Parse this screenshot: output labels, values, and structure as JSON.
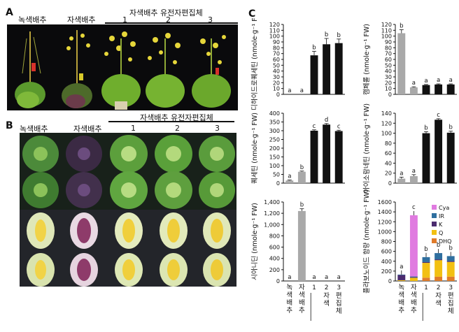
{
  "panelA": {
    "letter": "A",
    "labels": [
      "녹색배추",
      "자색배추"
    ],
    "group_label": "자색배추 유전자편집체",
    "numbers": [
      "1",
      "2",
      "3"
    ]
  },
  "panelB": {
    "letter": "B",
    "labels": [
      "녹색배추",
      "자색배추"
    ],
    "group_label": "자색배추 유전자편집체",
    "numbers": [
      "1",
      "2",
      "3"
    ]
  },
  "panelC": {
    "letter": "C",
    "xcategories": [
      "녹색배추",
      "자색배추",
      "1",
      "2",
      "3"
    ],
    "xgroup_label": "편집체",
    "xgroup_prefix": "자색",
    "colors": {
      "black": "#111111",
      "gray": "#a9a9a9"
    }
  },
  "chart_data": [
    {
      "type": "bar",
      "ylabel": "디하이드로퀘세틴 (nmole·g⁻¹ FW)",
      "yticks": [
        "0",
        "10",
        "20",
        "30",
        "40",
        "50",
        "60",
        "70",
        "80",
        "90",
        "100",
        "110",
        "120"
      ],
      "ylim": [
        0,
        120
      ],
      "categories": [
        "녹색배추",
        "자색배추",
        "1",
        "2",
        "3"
      ],
      "values": [
        0,
        0,
        67,
        86,
        88
      ],
      "errors": [
        0,
        0,
        7,
        10,
        7
      ],
      "letters": [
        "a",
        "a",
        "b",
        "b",
        "b"
      ]
    },
    {
      "type": "bar",
      "ylabel": "캠페롤 (nmole·g⁻¹ FW)",
      "yticks": [
        "0",
        "10",
        "20",
        "30",
        "40",
        "50",
        "60",
        "70",
        "80",
        "90",
        "100",
        "110",
        "120"
      ],
      "ylim": [
        0,
        120
      ],
      "categories": [
        "녹색배추",
        "자색배추",
        "1",
        "2",
        "3"
      ],
      "values": [
        105,
        12,
        16,
        17,
        17
      ],
      "errors": [
        6,
        1,
        1,
        1,
        1
      ],
      "letters": [
        "b",
        "a",
        "a",
        "a",
        "a"
      ]
    },
    {
      "type": "bar",
      "ylabel": "퀘세틴 (nmole·g⁻¹ FW)",
      "yticks": [
        "0",
        "50",
        "100",
        "150",
        "200",
        "250",
        "300",
        "350",
        "400"
      ],
      "ylim": [
        0,
        400
      ],
      "categories": [
        "녹색배추",
        "자색배추",
        "1",
        "2",
        "3"
      ],
      "values": [
        15,
        65,
        300,
        335,
        298
      ],
      "errors": [
        3,
        4,
        5,
        6,
        5
      ],
      "letters": [
        "a",
        "b",
        "c",
        "d",
        "c"
      ]
    },
    {
      "type": "bar",
      "ylabel": "아이소람네틴 (nmole·g⁻¹ FW)",
      "yticks": [
        "0",
        "20",
        "40",
        "60",
        "80",
        "100",
        "120",
        "140"
      ],
      "ylim": [
        0,
        140
      ],
      "categories": [
        "녹색배추",
        "자색배추",
        "1",
        "2",
        "3"
      ],
      "values": [
        9,
        14,
        100,
        127,
        101
      ],
      "errors": [
        3,
        3,
        3,
        2,
        3
      ],
      "letters": [
        "a",
        "a",
        "b",
        "c",
        "b"
      ]
    },
    {
      "type": "bar",
      "ylabel": "시아니딘 (nmole·g⁻¹ FW)",
      "yticks": [
        "0",
        "200",
        "400",
        "600",
        "800",
        "1,000",
        "1,200",
        "1,400"
      ],
      "ylim": [
        0,
        1400
      ],
      "categories": [
        "녹색배추",
        "자색배추",
        "1",
        "2",
        "3"
      ],
      "values": [
        0,
        1240,
        0,
        0,
        0
      ],
      "errors": [
        0,
        40,
        0,
        0,
        0
      ],
      "letters": [
        "a",
        "b",
        "a",
        "a",
        "a"
      ]
    },
    {
      "type": "bar",
      "stacked": true,
      "ylabel": "플라보노이드 함량 (nmole·g⁻¹ FW)",
      "yticks": [
        "0",
        "200",
        "400",
        "600",
        "800",
        "1000",
        "1200",
        "1400",
        "1600"
      ],
      "ylim": [
        0,
        1600
      ],
      "categories": [
        "녹색배추",
        "자색배추",
        "1",
        "2",
        "3"
      ],
      "series": [
        {
          "name": "DHQ",
          "color": "#e07b2a",
          "values": [
            0,
            0,
            67,
            86,
            88
          ]
        },
        {
          "name": "Q",
          "color": "#f2c012",
          "values": [
            15,
            65,
            300,
            335,
            298
          ]
        },
        {
          "name": "K",
          "color": "#4b2b6e",
          "values": [
            105,
            12,
            16,
            17,
            17
          ]
        },
        {
          "name": "IR",
          "color": "#2f6f9f",
          "values": [
            9,
            14,
            100,
            127,
            101
          ]
        },
        {
          "name": "Cya",
          "color": "#e07be0",
          "values": [
            0,
            1240,
            0,
            0,
            0
          ]
        }
      ],
      "totals": [
        129,
        1331,
        483,
        565,
        504
      ],
      "letters": [
        "a",
        "c",
        "b",
        "b",
        "b"
      ]
    }
  ]
}
